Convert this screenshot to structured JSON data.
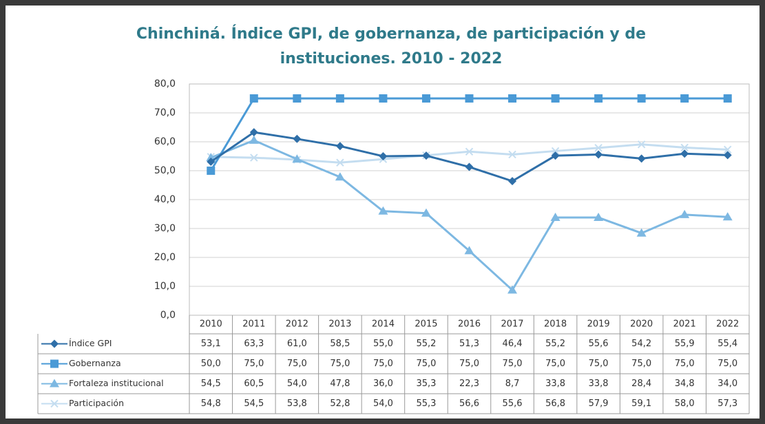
{
  "chart_data": {
    "type": "line",
    "title": "Chinchiná. Índice GPI, de gobernanza, de participación y de instituciones. 2010 - 2022",
    "categories": [
      "2010",
      "2011",
      "2012",
      "2013",
      "2014",
      "2015",
      "2016",
      "2017",
      "2018",
      "2019",
      "2020",
      "2021",
      "2022"
    ],
    "ylim": [
      0,
      80
    ],
    "yticks": [
      {
        "value": 0,
        "label": "0,0"
      },
      {
        "value": 10,
        "label": "10,0"
      },
      {
        "value": 20,
        "label": "20,0"
      },
      {
        "value": 30,
        "label": "30,0"
      },
      {
        "value": 40,
        "label": "40,0"
      },
      {
        "value": 50,
        "label": "50,0"
      },
      {
        "value": 60,
        "label": "60,0"
      },
      {
        "value": 70,
        "label": "70,0"
      },
      {
        "value": 80,
        "label": "80,0"
      }
    ],
    "grid": true,
    "series": [
      {
        "name": "Índice GPI",
        "color": "#2f6fa8",
        "marker": "diamond",
        "values": [
          53.1,
          63.3,
          61.0,
          58.5,
          55.0,
          55.2,
          51.3,
          46.4,
          55.2,
          55.6,
          54.2,
          55.9,
          55.4
        ],
        "value_labels": [
          "53,1",
          "63,3",
          "61,0",
          "58,5",
          "55,0",
          "55,2",
          "51,3",
          "46,4",
          "55,2",
          "55,6",
          "54,2",
          "55,9",
          "55,4"
        ]
      },
      {
        "name": "Gobernanza",
        "color": "#4a9ad6",
        "marker": "square",
        "values": [
          50.0,
          75.0,
          75.0,
          75.0,
          75.0,
          75.0,
          75.0,
          75.0,
          75.0,
          75.0,
          75.0,
          75.0,
          75.0
        ],
        "value_labels": [
          "50,0",
          "75,0",
          "75,0",
          "75,0",
          "75,0",
          "75,0",
          "75,0",
          "75,0",
          "75,0",
          "75,0",
          "75,0",
          "75,0",
          "75,0"
        ]
      },
      {
        "name": "Fortaleza institucional",
        "color": "#7db8e2",
        "marker": "triangle",
        "values": [
          54.5,
          60.5,
          54.0,
          47.8,
          36.0,
          35.3,
          22.3,
          8.7,
          33.8,
          33.8,
          28.4,
          34.8,
          34.0
        ],
        "value_labels": [
          "54,5",
          "60,5",
          "54,0",
          "47,8",
          "36,0",
          "35,3",
          "22,3",
          "8,7",
          "33,8",
          "33,8",
          "28,4",
          "34,8",
          "34,0"
        ]
      },
      {
        "name": "Participación",
        "color": "#c4ddf0",
        "marker": "x",
        "values": [
          54.8,
          54.5,
          53.8,
          52.8,
          54.0,
          55.3,
          56.6,
          55.6,
          56.8,
          57.9,
          59.1,
          58.0,
          57.3
        ],
        "value_labels": [
          "54,8",
          "54,5",
          "53,8",
          "52,8",
          "54,0",
          "55,3",
          "56,6",
          "55,6",
          "56,8",
          "57,9",
          "59,1",
          "58,0",
          "57,3"
        ]
      }
    ]
  }
}
